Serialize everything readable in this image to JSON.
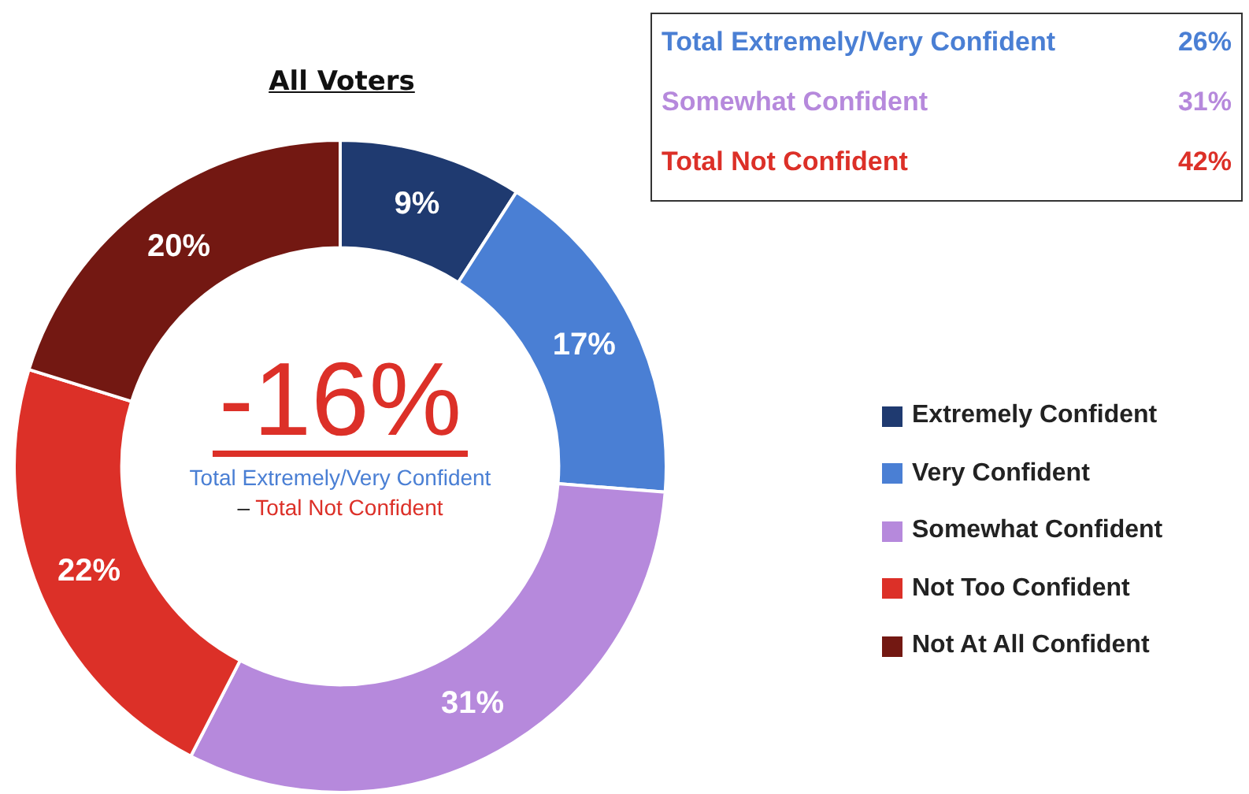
{
  "chart_data": {
    "type": "donut",
    "title": "All Voters",
    "categories": [
      "Extremely Confident",
      "Very Confident",
      "Somewhat Confident",
      "Not Too Confident",
      "Not At All Confident"
    ],
    "values": [
      9,
      17,
      31,
      22,
      20
    ],
    "colors": [
      "#1f3a70",
      "#4a7fd4",
      "#b689dc",
      "#dc3028",
      "#731812"
    ],
    "value_labels": [
      "9%",
      "17%",
      "31%",
      "22%",
      "20%"
    ],
    "legend": "right",
    "annotations": [
      "-16%",
      "Total Extremely/Very Confident",
      "–",
      "Total Not Confident",
      "Total Extremely/Very Confident",
      "26%",
      "Somewhat Confident",
      "31%",
      "Total Not Confident",
      "42%"
    ]
  }
}
